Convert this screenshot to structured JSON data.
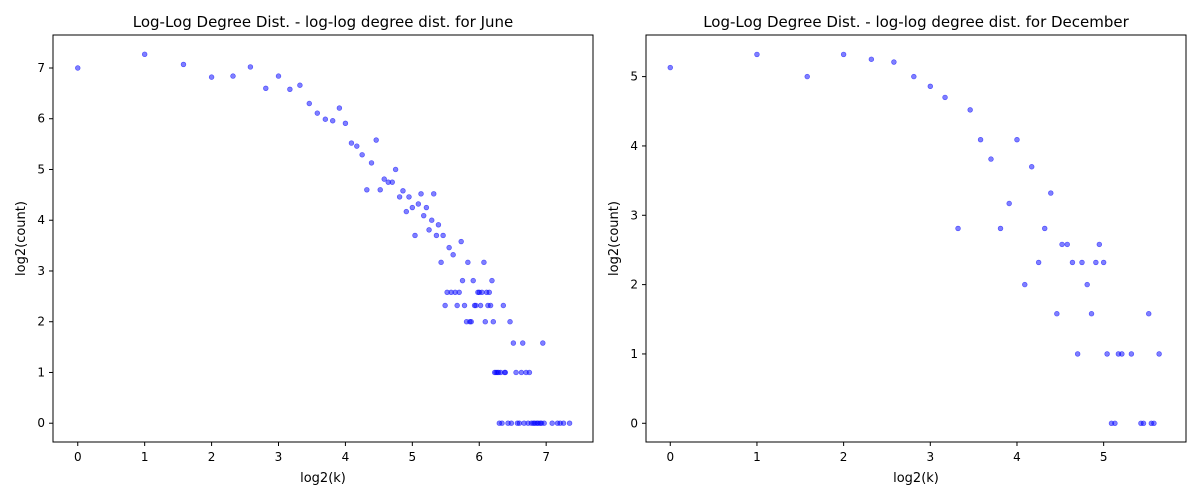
{
  "chart_data": [
    {
      "type": "scatter",
      "title": "Log-Log Degree Dist. - log-log degree dist. for June",
      "xlabel": "log2(k)",
      "ylabel": "log2(count)",
      "xlim": [
        -0.37,
        7.7
      ],
      "ylim": [
        -0.37,
        7.65
      ],
      "xticks": [
        0,
        1,
        2,
        3,
        4,
        5,
        6,
        7
      ],
      "yticks": [
        0,
        1,
        2,
        3,
        4,
        5,
        6,
        7
      ],
      "grid": false,
      "color": "#0000ff",
      "points": [
        [
          0,
          7.0
        ],
        [
          1,
          7.27
        ],
        [
          1.58,
          7.07
        ],
        [
          2,
          6.82
        ],
        [
          2.32,
          6.84
        ],
        [
          2.58,
          7.02
        ],
        [
          2.81,
          6.6
        ],
        [
          3,
          6.84
        ],
        [
          3.17,
          6.58
        ],
        [
          3.32,
          6.66
        ],
        [
          3.46,
          6.3
        ],
        [
          3.58,
          6.11
        ],
        [
          3.7,
          5.99
        ],
        [
          3.81,
          5.96
        ],
        [
          3.91,
          6.21
        ],
        [
          4,
          5.91
        ],
        [
          4.09,
          5.52
        ],
        [
          4.17,
          5.46
        ],
        [
          4.25,
          5.29
        ],
        [
          4.32,
          4.6
        ],
        [
          4.39,
          5.13
        ],
        [
          4.46,
          5.58
        ],
        [
          4.52,
          4.6
        ],
        [
          4.58,
          4.81
        ],
        [
          4.64,
          4.75
        ],
        [
          4.7,
          4.75
        ],
        [
          4.75,
          5.0
        ],
        [
          4.81,
          4.46
        ],
        [
          4.86,
          4.58
        ],
        [
          4.91,
          4.17
        ],
        [
          4.95,
          4.46
        ],
        [
          5,
          4.25
        ],
        [
          5.04,
          3.7
        ],
        [
          5.09,
          4.32
        ],
        [
          5.13,
          4.52
        ],
        [
          5.17,
          4.09
        ],
        [
          5.21,
          4.25
        ],
        [
          5.25,
          3.81
        ],
        [
          5.29,
          4.0
        ],
        [
          5.32,
          4.52
        ],
        [
          5.36,
          3.7
        ],
        [
          5.39,
          3.91
        ],
        [
          5.43,
          3.17
        ],
        [
          5.46,
          3.7
        ],
        [
          5.49,
          2.32
        ],
        [
          5.52,
          2.58
        ],
        [
          5.55,
          3.46
        ],
        [
          5.58,
          2.58
        ],
        [
          5.61,
          3.32
        ],
        [
          5.64,
          2.58
        ],
        [
          5.67,
          2.32
        ],
        [
          5.7,
          2.58
        ],
        [
          5.73,
          3.58
        ],
        [
          5.75,
          2.81
        ],
        [
          5.78,
          2.32
        ],
        [
          5.81,
          2.0
        ],
        [
          5.83,
          3.17
        ],
        [
          5.86,
          2.0
        ],
        [
          5.88,
          2.0
        ],
        [
          5.91,
          2.81
        ],
        [
          5.93,
          2.32
        ],
        [
          5.95,
          2.32
        ],
        [
          5.98,
          2.58
        ],
        [
          6.0,
          2.58
        ],
        [
          6.02,
          2.32
        ],
        [
          6.04,
          2.58
        ],
        [
          6.07,
          3.17
        ],
        [
          6.09,
          2.0
        ],
        [
          6.11,
          2.58
        ],
        [
          6.13,
          2.32
        ],
        [
          6.15,
          2.58
        ],
        [
          6.17,
          2.32
        ],
        [
          6.19,
          2.81
        ],
        [
          6.21,
          2.0
        ],
        [
          6.23,
          1.0
        ],
        [
          6.25,
          1.0
        ],
        [
          6.27,
          1.0
        ],
        [
          6.29,
          1.0
        ],
        [
          6.3,
          0.0
        ],
        [
          6.32,
          1.0
        ],
        [
          6.34,
          0.0
        ],
        [
          6.36,
          2.32
        ],
        [
          6.38,
          1.0
        ],
        [
          6.39,
          1.0
        ],
        [
          6.43,
          0.0
        ],
        [
          6.46,
          2.0
        ],
        [
          6.48,
          0.0
        ],
        [
          6.51,
          1.58
        ],
        [
          6.55,
          1.0
        ],
        [
          6.57,
          0.0
        ],
        [
          6.6,
          0.0
        ],
        [
          6.63,
          1.0
        ],
        [
          6.65,
          1.58
        ],
        [
          6.67,
          0.0
        ],
        [
          6.7,
          1.0
        ],
        [
          6.73,
          0.0
        ],
        [
          6.75,
          1.0
        ],
        [
          6.78,
          0.0
        ],
        [
          6.81,
          0.0
        ],
        [
          6.83,
          0.0
        ],
        [
          6.86,
          0.0
        ],
        [
          6.88,
          0.0
        ],
        [
          6.91,
          0.0
        ],
        [
          6.93,
          0.0
        ],
        [
          6.95,
          1.58
        ],
        [
          6.97,
          0.0
        ],
        [
          7.09,
          0.0
        ],
        [
          7.17,
          0.0
        ],
        [
          7.21,
          0.0
        ],
        [
          7.26,
          0.0
        ],
        [
          7.35,
          0.0
        ]
      ]
    },
    {
      "type": "scatter",
      "title": "Log-Log Degree Dist. - log-log degree dist. for December",
      "xlabel": "log2(k)",
      "ylabel": "log2(count)",
      "xlim": [
        -0.28,
        5.95
      ],
      "ylim": [
        -0.27,
        5.6
      ],
      "xticks": [
        0,
        1,
        2,
        3,
        4,
        5
      ],
      "yticks": [
        0,
        1,
        2,
        3,
        4,
        5
      ],
      "grid": false,
      "color": "#0000ff",
      "points": [
        [
          0,
          5.13
        ],
        [
          1,
          5.32
        ],
        [
          1.58,
          5.0
        ],
        [
          2,
          5.32
        ],
        [
          2.32,
          5.25
        ],
        [
          2.58,
          5.21
        ],
        [
          2.81,
          5.0
        ],
        [
          3,
          4.86
        ],
        [
          3.17,
          4.7
        ],
        [
          3.32,
          2.81
        ],
        [
          3.46,
          4.52
        ],
        [
          3.58,
          4.09
        ],
        [
          3.7,
          3.81
        ],
        [
          3.81,
          2.81
        ],
        [
          3.91,
          3.17
        ],
        [
          4,
          4.09
        ],
        [
          4.09,
          2.0
        ],
        [
          4.17,
          3.7
        ],
        [
          4.25,
          2.32
        ],
        [
          4.32,
          2.81
        ],
        [
          4.39,
          3.32
        ],
        [
          4.46,
          1.58
        ],
        [
          4.52,
          2.58
        ],
        [
          4.58,
          2.58
        ],
        [
          4.64,
          2.32
        ],
        [
          4.7,
          1.0
        ],
        [
          4.75,
          2.32
        ],
        [
          4.81,
          2.0
        ],
        [
          4.86,
          1.58
        ],
        [
          4.91,
          2.32
        ],
        [
          4.95,
          2.58
        ],
        [
          5,
          2.32
        ],
        [
          5.04,
          1.0
        ],
        [
          5.09,
          0.0
        ],
        [
          5.13,
          0.0
        ],
        [
          5.17,
          1.0
        ],
        [
          5.21,
          1.0
        ],
        [
          5.32,
          1.0
        ],
        [
          5.43,
          0.0
        ],
        [
          5.46,
          0.0
        ],
        [
          5.52,
          1.58
        ],
        [
          5.55,
          0.0
        ],
        [
          5.58,
          0.0
        ],
        [
          5.64,
          1.0
        ]
      ]
    }
  ]
}
